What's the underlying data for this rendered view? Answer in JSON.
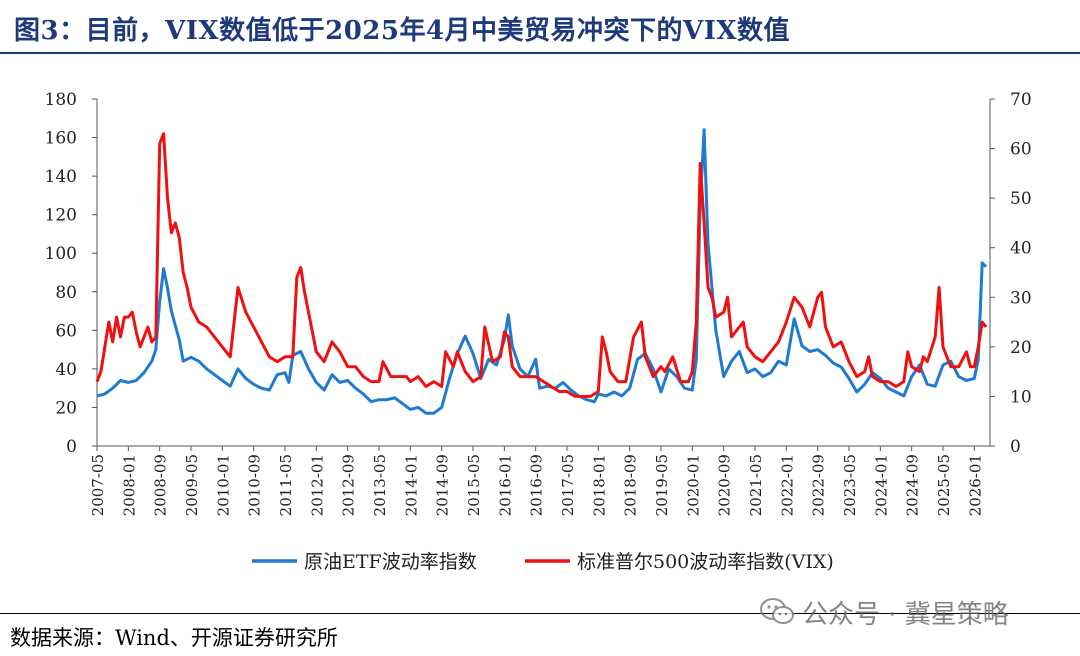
{
  "title": "图3：目前，VIX数值低于2025年4月中美贸易冲突下的VIX数值",
  "source": "数据来源：Wind、开源证券研究所",
  "watermark": {
    "icon": "wechat-icon",
    "text": "公众号 · 冀星策略"
  },
  "colors": {
    "title": "#1f3a7a",
    "etf": "#1f7bd0",
    "vix": "#f01010"
  },
  "chart_data": {
    "type": "line",
    "title": "",
    "xlabel": "",
    "ylabel_left": "",
    "ylabel_right": "",
    "ylim_left": [
      0,
      180
    ],
    "yticks_left": [
      0,
      20,
      40,
      60,
      80,
      100,
      120,
      140,
      160,
      180
    ],
    "ylim_right": [
      0,
      70
    ],
    "yticks_right": [
      0,
      10,
      20,
      30,
      40,
      50,
      60,
      70
    ],
    "x_start": "2007-05",
    "x_end": "2026-05",
    "xticks": [
      "2007-05",
      "2008-01",
      "2008-09",
      "2009-05",
      "2010-01",
      "2010-09",
      "2011-05",
      "2012-01",
      "2012-09",
      "2013-05",
      "2014-01",
      "2014-09",
      "2015-05",
      "2016-01",
      "2016-09",
      "2017-05",
      "2018-01",
      "2018-09",
      "2019-05",
      "2020-01",
      "2020-09",
      "2021-05",
      "2022-01",
      "2022-09",
      "2023-05",
      "2024-01",
      "2024-09",
      "2025-05",
      "2026-01"
    ],
    "legend_position": "bottom-center",
    "grid": false,
    "series": [
      {
        "name": "原油ETF波动率指数",
        "axis": "left",
        "color": "#1f7bd0",
        "points": [
          [
            "2007-05",
            26
          ],
          [
            "2007-07",
            27
          ],
          [
            "2007-09",
            30
          ],
          [
            "2007-11",
            34
          ],
          [
            "2008-01",
            33
          ],
          [
            "2008-03",
            34
          ],
          [
            "2008-05",
            38
          ],
          [
            "2008-07",
            44
          ],
          [
            "2008-08",
            50
          ],
          [
            "2008-09",
            75
          ],
          [
            "2008-10",
            92
          ],
          [
            "2008-11",
            82
          ],
          [
            "2008-12",
            70
          ],
          [
            "2009-02",
            55
          ],
          [
            "2009-03",
            44
          ],
          [
            "2009-05",
            46
          ],
          [
            "2009-07",
            44
          ],
          [
            "2009-09",
            40
          ],
          [
            "2009-11",
            37
          ],
          [
            "2010-01",
            34
          ],
          [
            "2010-03",
            31
          ],
          [
            "2010-05",
            40
          ],
          [
            "2010-07",
            35
          ],
          [
            "2010-09",
            32
          ],
          [
            "2010-11",
            30
          ],
          [
            "2011-01",
            29
          ],
          [
            "2011-03",
            37
          ],
          [
            "2011-05",
            38
          ],
          [
            "2011-06",
            33
          ],
          [
            "2011-07",
            47
          ],
          [
            "2011-09",
            49
          ],
          [
            "2011-11",
            40
          ],
          [
            "2012-01",
            33
          ],
          [
            "2012-03",
            29
          ],
          [
            "2012-05",
            37
          ],
          [
            "2012-07",
            33
          ],
          [
            "2012-09",
            34
          ],
          [
            "2012-11",
            30
          ],
          [
            "2013-01",
            27
          ],
          [
            "2013-03",
            23
          ],
          [
            "2013-05",
            24
          ],
          [
            "2013-07",
            24
          ],
          [
            "2013-09",
            25
          ],
          [
            "2013-11",
            22
          ],
          [
            "2014-01",
            19
          ],
          [
            "2014-03",
            20
          ],
          [
            "2014-05",
            17
          ],
          [
            "2014-07",
            17
          ],
          [
            "2014-09",
            20
          ],
          [
            "2014-11",
            35
          ],
          [
            "2015-01",
            48
          ],
          [
            "2015-03",
            57
          ],
          [
            "2015-05",
            48
          ],
          [
            "2015-07",
            35
          ],
          [
            "2015-09",
            45
          ],
          [
            "2015-11",
            42
          ],
          [
            "2016-01",
            55
          ],
          [
            "2016-02",
            68
          ],
          [
            "2016-03",
            52
          ],
          [
            "2016-05",
            40
          ],
          [
            "2016-07",
            36
          ],
          [
            "2016-09",
            45
          ],
          [
            "2016-10",
            30
          ],
          [
            "2016-12",
            31
          ],
          [
            "2017-02",
            30
          ],
          [
            "2017-04",
            33
          ],
          [
            "2017-06",
            29
          ],
          [
            "2017-08",
            26
          ],
          [
            "2017-10",
            24
          ],
          [
            "2017-12",
            23
          ],
          [
            "2018-01",
            27
          ],
          [
            "2018-03",
            26
          ],
          [
            "2018-05",
            28
          ],
          [
            "2018-07",
            26
          ],
          [
            "2018-09",
            30
          ],
          [
            "2018-11",
            45
          ],
          [
            "2019-01",
            48
          ],
          [
            "2019-03",
            40
          ],
          [
            "2019-05",
            28
          ],
          [
            "2019-07",
            40
          ],
          [
            "2019-09",
            36
          ],
          [
            "2019-11",
            30
          ],
          [
            "2020-01",
            29
          ],
          [
            "2020-02",
            45
          ],
          [
            "2020-03",
            125
          ],
          [
            "2020-04",
            164
          ],
          [
            "2020-05",
            105
          ],
          [
            "2020-07",
            60
          ],
          [
            "2020-09",
            36
          ],
          [
            "2020-11",
            44
          ],
          [
            "2021-01",
            49
          ],
          [
            "2021-03",
            38
          ],
          [
            "2021-05",
            40
          ],
          [
            "2021-07",
            36
          ],
          [
            "2021-09",
            38
          ],
          [
            "2021-11",
            44
          ],
          [
            "2022-01",
            42
          ],
          [
            "2022-03",
            66
          ],
          [
            "2022-05",
            52
          ],
          [
            "2022-07",
            49
          ],
          [
            "2022-09",
            50
          ],
          [
            "2022-11",
            47
          ],
          [
            "2023-01",
            43
          ],
          [
            "2023-03",
            41
          ],
          [
            "2023-05",
            35
          ],
          [
            "2023-07",
            28
          ],
          [
            "2023-09",
            32
          ],
          [
            "2023-11",
            38
          ],
          [
            "2024-01",
            35
          ],
          [
            "2024-03",
            30
          ],
          [
            "2024-05",
            28
          ],
          [
            "2024-07",
            26
          ],
          [
            "2024-09",
            36
          ],
          [
            "2024-11",
            42
          ],
          [
            "2025-01",
            32
          ],
          [
            "2025-03",
            31
          ],
          [
            "2025-05",
            42
          ],
          [
            "2025-07",
            44
          ],
          [
            "2025-09",
            36
          ],
          [
            "2025-11",
            34
          ],
          [
            "2026-01",
            35
          ],
          [
            "2026-02",
            45
          ],
          [
            "2026-03",
            95
          ],
          [
            "2026-04",
            93
          ]
        ]
      },
      {
        "name": "标准普尔500波动率指数(VIX)",
        "axis": "right",
        "color": "#f01010",
        "points": [
          [
            "2007-05",
            13
          ],
          [
            "2007-06",
            15
          ],
          [
            "2007-08",
            25
          ],
          [
            "2007-09",
            21
          ],
          [
            "2007-10",
            26
          ],
          [
            "2007-11",
            22
          ],
          [
            "2007-12",
            26
          ],
          [
            "2008-01",
            26
          ],
          [
            "2008-02",
            27
          ],
          [
            "2008-03",
            23
          ],
          [
            "2008-04",
            20
          ],
          [
            "2008-06",
            24
          ],
          [
            "2008-07",
            21
          ],
          [
            "2008-08",
            22
          ],
          [
            "2008-09",
            61
          ],
          [
            "2008-10",
            63
          ],
          [
            "2008-11",
            50
          ],
          [
            "2008-12",
            43
          ],
          [
            "2009-01",
            45
          ],
          [
            "2009-02",
            42
          ],
          [
            "2009-03",
            35
          ],
          [
            "2009-04",
            32
          ],
          [
            "2009-05",
            28
          ],
          [
            "2009-07",
            25
          ],
          [
            "2009-09",
            24
          ],
          [
            "2009-11",
            22
          ],
          [
            "2010-01",
            20
          ],
          [
            "2010-03",
            18
          ],
          [
            "2010-05",
            32
          ],
          [
            "2010-07",
            27
          ],
          [
            "2010-09",
            24
          ],
          [
            "2010-11",
            21
          ],
          [
            "2011-01",
            18
          ],
          [
            "2011-03",
            17
          ],
          [
            "2011-05",
            18
          ],
          [
            "2011-07",
            18
          ],
          [
            "2011-08",
            34
          ],
          [
            "2011-09",
            36
          ],
          [
            "2011-10",
            31
          ],
          [
            "2011-12",
            23
          ],
          [
            "2012-01",
            19
          ],
          [
            "2012-03",
            17
          ],
          [
            "2012-05",
            21
          ],
          [
            "2012-07",
            19
          ],
          [
            "2012-09",
            16
          ],
          [
            "2012-11",
            16
          ],
          [
            "2013-01",
            14
          ],
          [
            "2013-03",
            13
          ],
          [
            "2013-05",
            13
          ],
          [
            "2013-06",
            17
          ],
          [
            "2013-08",
            14
          ],
          [
            "2013-10",
            14
          ],
          [
            "2013-12",
            14
          ],
          [
            "2014-01",
            13
          ],
          [
            "2014-03",
            14
          ],
          [
            "2014-05",
            12
          ],
          [
            "2014-07",
            13
          ],
          [
            "2014-09",
            12
          ],
          [
            "2014-10",
            19
          ],
          [
            "2014-12",
            16
          ],
          [
            "2015-01",
            19
          ],
          [
            "2015-03",
            15
          ],
          [
            "2015-05",
            13
          ],
          [
            "2015-07",
            14
          ],
          [
            "2015-08",
            24
          ],
          [
            "2015-10",
            17
          ],
          [
            "2015-12",
            18
          ],
          [
            "2016-01",
            23
          ],
          [
            "2016-02",
            22
          ],
          [
            "2016-03",
            16
          ],
          [
            "2016-05",
            14
          ],
          [
            "2016-07",
            14
          ],
          [
            "2016-09",
            14
          ],
          [
            "2016-11",
            13
          ],
          [
            "2017-01",
            12
          ],
          [
            "2017-03",
            11
          ],
          [
            "2017-05",
            11
          ],
          [
            "2017-07",
            10
          ],
          [
            "2017-09",
            10
          ],
          [
            "2017-11",
            10
          ],
          [
            "2018-01",
            11
          ],
          [
            "2018-02",
            22
          ],
          [
            "2018-03",
            19
          ],
          [
            "2018-04",
            15
          ],
          [
            "2018-06",
            13
          ],
          [
            "2018-08",
            13
          ],
          [
            "2018-10",
            22
          ],
          [
            "2018-12",
            25
          ],
          [
            "2019-01",
            18
          ],
          [
            "2019-03",
            14
          ],
          [
            "2019-05",
            16
          ],
          [
            "2019-06",
            15
          ],
          [
            "2019-08",
            18
          ],
          [
            "2019-10",
            13
          ],
          [
            "2019-12",
            13
          ],
          [
            "2020-01",
            15
          ],
          [
            "2020-02",
            25
          ],
          [
            "2020-03",
            57
          ],
          [
            "2020-04",
            45
          ],
          [
            "2020-05",
            32
          ],
          [
            "2020-06",
            30
          ],
          [
            "2020-07",
            26
          ],
          [
            "2020-09",
            27
          ],
          [
            "2020-10",
            30
          ],
          [
            "2020-11",
            22
          ],
          [
            "2021-01",
            24
          ],
          [
            "2021-02",
            25
          ],
          [
            "2021-03",
            20
          ],
          [
            "2021-05",
            18
          ],
          [
            "2021-07",
            17
          ],
          [
            "2021-09",
            19
          ],
          [
            "2021-11",
            21
          ],
          [
            "2022-01",
            25
          ],
          [
            "2022-03",
            30
          ],
          [
            "2022-05",
            28
          ],
          [
            "2022-07",
            24
          ],
          [
            "2022-09",
            30
          ],
          [
            "2022-10",
            31
          ],
          [
            "2022-11",
            24
          ],
          [
            "2023-01",
            20
          ],
          [
            "2023-03",
            21
          ],
          [
            "2023-05",
            17
          ],
          [
            "2023-07",
            14
          ],
          [
            "2023-09",
            15
          ],
          [
            "2023-10",
            18
          ],
          [
            "2023-11",
            14
          ],
          [
            "2024-01",
            13
          ],
          [
            "2024-03",
            13
          ],
          [
            "2024-05",
            12
          ],
          [
            "2024-07",
            13
          ],
          [
            "2024-08",
            19
          ],
          [
            "2024-09",
            16
          ],
          [
            "2024-11",
            15
          ],
          [
            "2024-12",
            18
          ],
          [
            "2025-01",
            17
          ],
          [
            "2025-03",
            22
          ],
          [
            "2025-04",
            32
          ],
          [
            "2025-05",
            20
          ],
          [
            "2025-07",
            16
          ],
          [
            "2025-09",
            16
          ],
          [
            "2025-11",
            19
          ],
          [
            "2025-12",
            16
          ],
          [
            "2026-01",
            16
          ],
          [
            "2026-02",
            20
          ],
          [
            "2026-03",
            25
          ],
          [
            "2026-04",
            24
          ]
        ]
      }
    ]
  }
}
